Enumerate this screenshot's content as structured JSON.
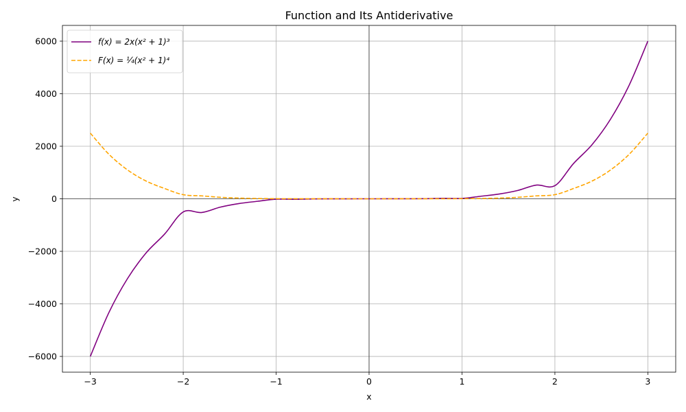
{
  "chart_data": {
    "type": "line",
    "title": "Function and Its Antiderivative",
    "xlabel": "x",
    "ylabel": "y",
    "xlim": [
      -3.3,
      3.3
    ],
    "ylim": [
      -6600,
      6600
    ],
    "x_ticks": [
      -3,
      -2,
      -1,
      0,
      1,
      2,
      3
    ],
    "x_tick_labels": [
      "−3",
      "−2",
      "−1",
      "0",
      "1",
      "2",
      "3"
    ],
    "y_ticks": [
      -6000,
      -4000,
      -2000,
      0,
      2000,
      4000,
      6000
    ],
    "y_tick_labels": [
      "−6000",
      "−4000",
      "−2000",
      "0",
      "2000",
      "4000",
      "6000"
    ],
    "grid": true,
    "zero_lines": true,
    "legend_position": "upper-left",
    "series": [
      {
        "name": "f(x) = 2x(x² + 1)³",
        "color": "#800080",
        "style": "solid",
        "x": [
          -3,
          -2.8,
          -2.6,
          -2.4,
          -2.2,
          -2,
          -1.8,
          -1.6,
          -1.4,
          -1.2,
          -1,
          -0.8,
          -0.6,
          -0.4,
          -0.2,
          0,
          0.2,
          0.4,
          0.6,
          0.8,
          1,
          1.2,
          1.4,
          1.6,
          1.8,
          2,
          2.2,
          2.4,
          2.6,
          2.8,
          3
        ],
        "y": [
          -6000,
          -4331,
          -3039,
          -2062,
          -1342,
          -500,
          -522,
          -317,
          -181,
          -95.1,
          -16,
          -17.6,
          -5.42,
          -1.26,
          -0.42,
          0,
          0.42,
          1.26,
          5.42,
          17.6,
          16,
          95.1,
          181,
          317,
          522,
          500,
          1342,
          2062,
          3039,
          4331,
          6000
        ]
      },
      {
        "name": "F(x) = ¼(x² + 1)⁴",
        "color": "#FFA500",
        "style": "dashed",
        "x": [
          -3,
          -2.8,
          -2.6,
          -2.4,
          -2.2,
          -2,
          -1.8,
          -1.6,
          -1.4,
          -1.2,
          -1,
          -0.8,
          -0.6,
          -0.4,
          -0.2,
          0,
          0.2,
          0.4,
          0.6,
          0.8,
          1,
          1.2,
          1.4,
          1.6,
          1.8,
          2,
          2.2,
          2.4,
          2.6,
          2.8,
          3
        ],
        "y": [
          2500,
          1696,
          1100,
          676,
          391,
          156.25,
          111,
          56.4,
          26.7,
          11.9,
          4,
          2.23,
          1.14,
          0.62,
          0.31,
          0.25,
          0.31,
          0.62,
          1.14,
          2.23,
          4,
          11.9,
          26.7,
          56.4,
          111,
          156.25,
          391,
          676,
          1100,
          1696,
          2500
        ]
      }
    ]
  }
}
